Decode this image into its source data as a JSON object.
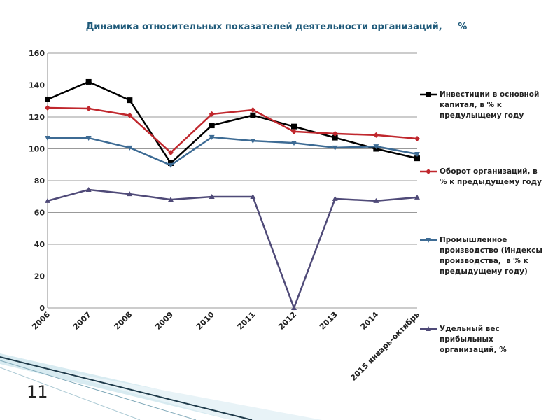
{
  "slide_number": "11",
  "chart_data": {
    "type": "line",
    "title": "Динамика относительных показателей деятельности организаций,     %",
    "categories": [
      "2006",
      "2007",
      "2008",
      "2009",
      "2010",
      "2011",
      "2012",
      "2013",
      "2014",
      "2015 январь-октябрь"
    ],
    "ylim": [
      0,
      160
    ],
    "yticks": [
      0,
      20,
      40,
      60,
      80,
      100,
      120,
      140,
      160
    ],
    "grid": true,
    "series": [
      {
        "name": "Инвестиции в основной капитал, в % к предулыщему году",
        "color": "#000000",
        "marker": "square",
        "values": [
          131,
          142,
          130.5,
          91,
          114.7,
          121,
          114,
          107,
          100,
          94
        ]
      },
      {
        "name": "Оборот организаций, в % к предыдущему году",
        "color": "#c0272d",
        "marker": "diamond",
        "values": [
          125.7,
          125.3,
          121,
          97.6,
          121.8,
          124.4,
          110.8,
          109.5,
          108.6,
          106.4
        ]
      },
      {
        "name": "Промышленное производство (Индексы производства,  в % к предыдущему году)",
        "color": "#3d6b94",
        "marker": "triangle-down",
        "values": [
          106.8,
          106.8,
          100.7,
          89.7,
          107.3,
          105,
          103.7,
          100.7,
          101.5,
          96.7
        ]
      },
      {
        "name": "Удельный вес прибыльных организаций, %",
        "color": "#4f4a78",
        "marker": "triangle-up",
        "values": [
          67.3,
          74.3,
          71.6,
          68.1,
          69.9,
          69.9,
          0,
          68.6,
          67.3,
          69.5
        ]
      }
    ]
  }
}
